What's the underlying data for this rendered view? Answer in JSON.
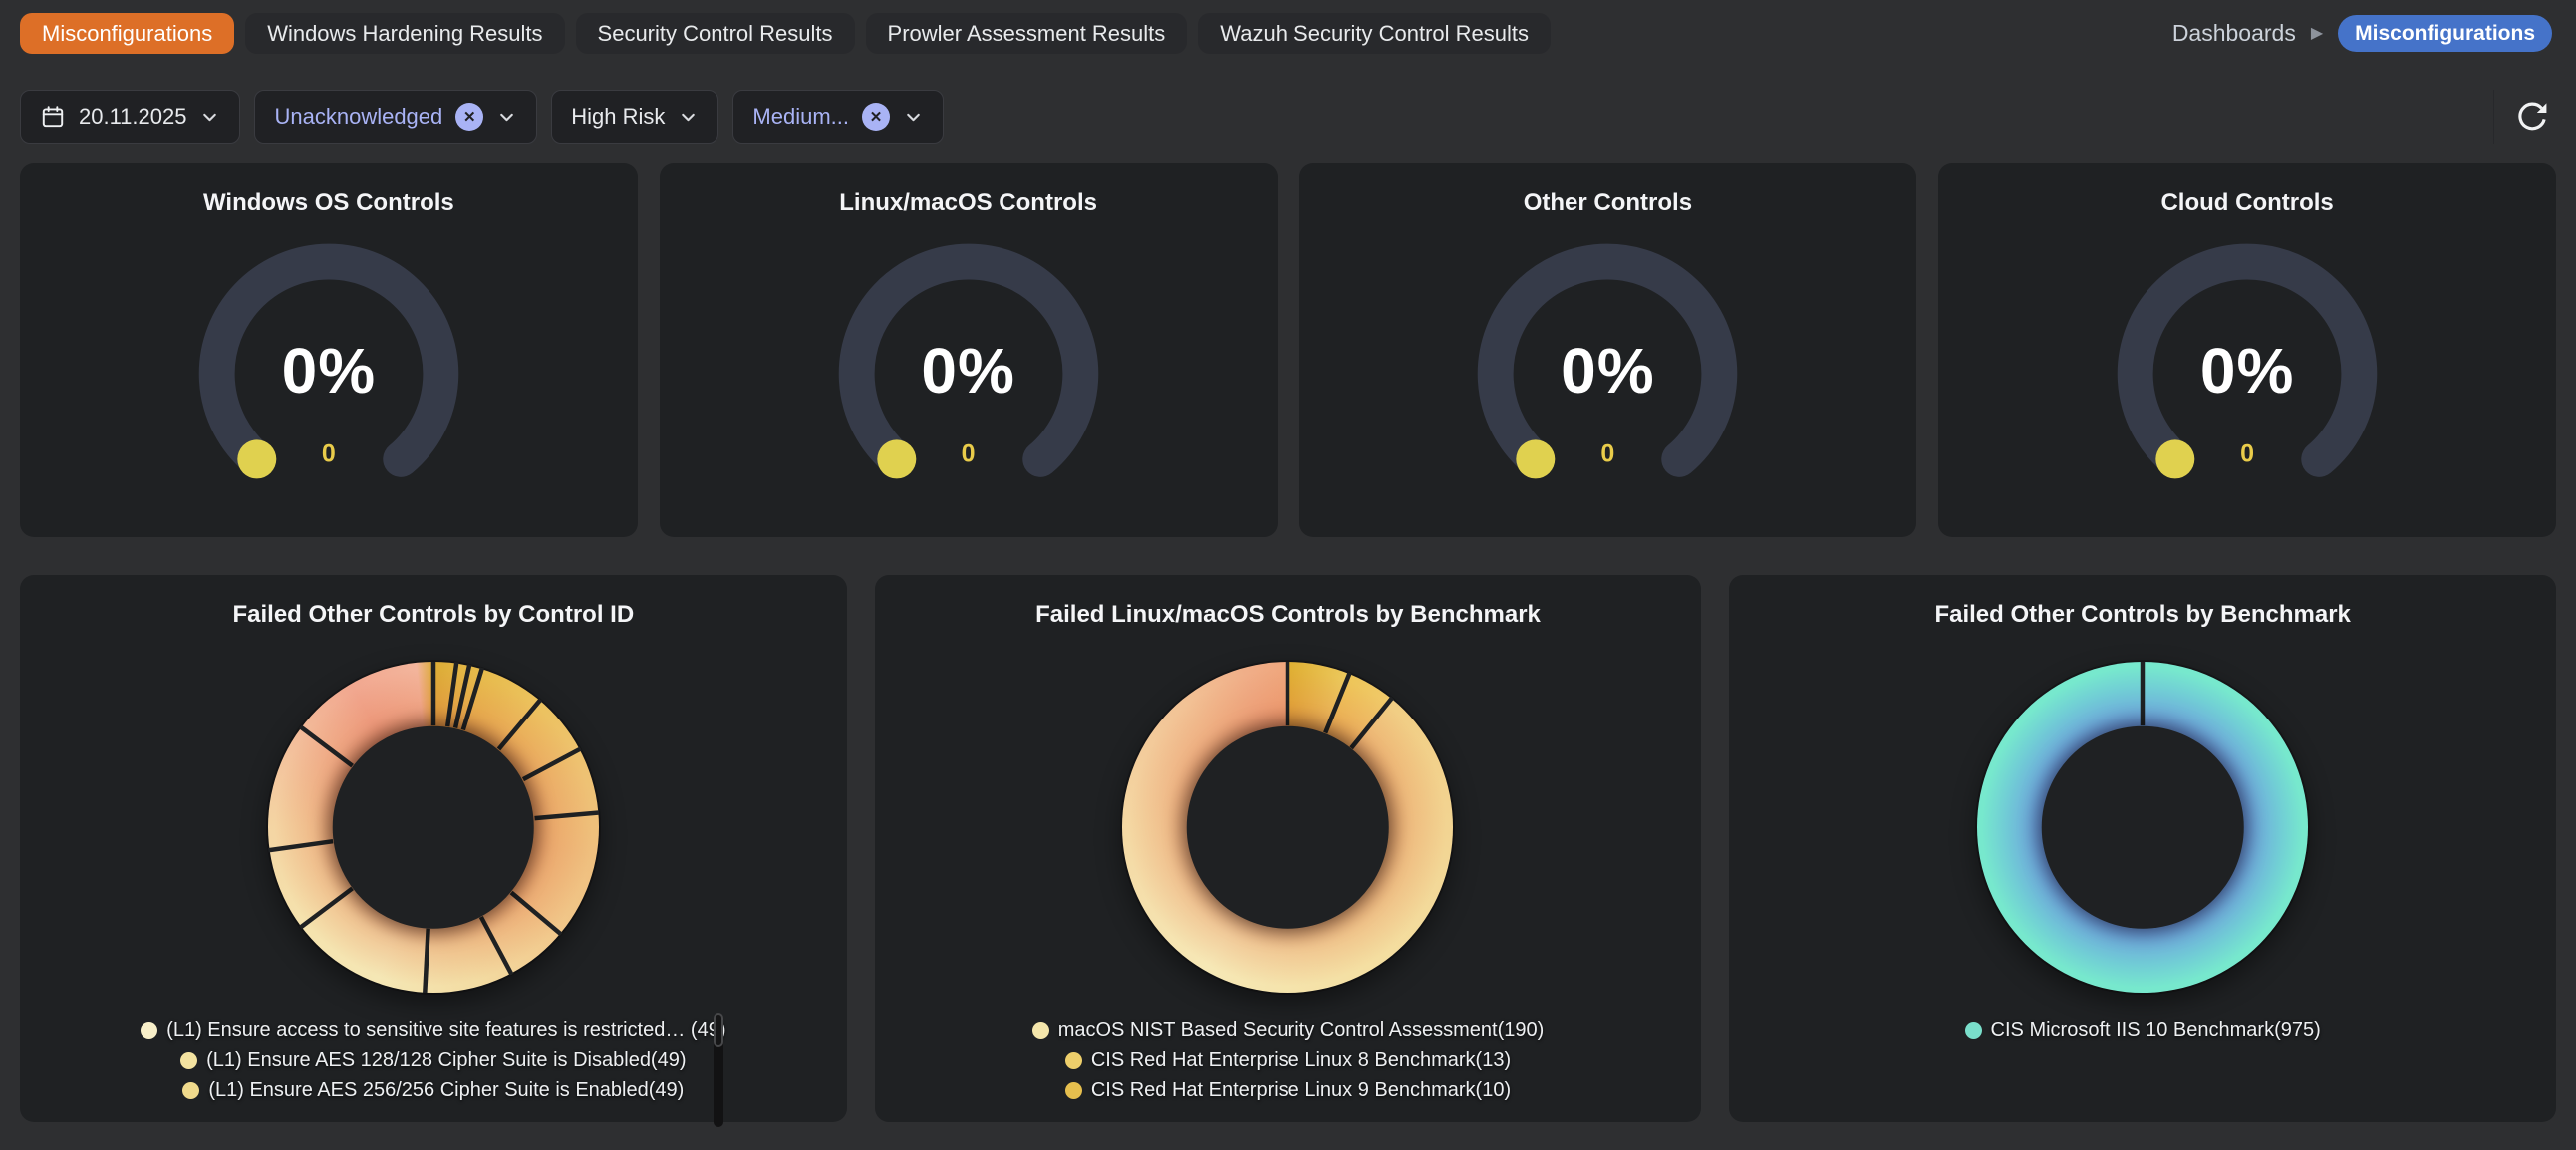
{
  "theme": {
    "page_bg": "#2e2f31",
    "card_bg": "#1f2123",
    "tab_bg": "#28292c",
    "tab_active_bg": "#dd6f27",
    "breadcrumb_badge_bg": "#4573c9",
    "filter_selected_text": "#a9b3f5",
    "gauge_track": "#363b49",
    "gauge_marker": "#e0d14f",
    "gauge_count_color": "#e9cc4a",
    "separator_color": "#1f2123"
  },
  "tabs": [
    {
      "label": "Misconfigurations",
      "active": true
    },
    {
      "label": "Windows Hardening Results",
      "active": false
    },
    {
      "label": "Security Control Results",
      "active": false
    },
    {
      "label": "Prowler Assessment Results",
      "active": false
    },
    {
      "label": "Wazuh Security Control Results",
      "active": false
    }
  ],
  "breadcrumb": {
    "root": "Dashboards",
    "current": "Misconfigurations"
  },
  "filters": {
    "date": "20.11.2025",
    "chips": [
      {
        "label": "Unacknowledged",
        "selected": true,
        "clearable": true
      },
      {
        "label": "High Risk",
        "selected": false,
        "clearable": false
      },
      {
        "label": "Medium...",
        "selected": true,
        "clearable": true
      }
    ]
  },
  "charts": {
    "gauges": [
      {
        "title": "Windows OS Controls",
        "percent": "0%",
        "count": "0"
      },
      {
        "title": "Linux/macOS Controls",
        "percent": "0%",
        "count": "0"
      },
      {
        "title": "Other Controls",
        "percent": "0%",
        "count": "0"
      },
      {
        "title": "Cloud Controls",
        "percent": "0%",
        "count": "0"
      }
    ],
    "donuts": [
      {
        "title": "Failed Other Controls by Control ID",
        "legend": [
          {
            "label": "(L1) Ensure access to sensitive site features is restricted… (49)",
            "color": "#f8efc9"
          },
          {
            "label": "(L1) Ensure AES 128/128 Cipher Suite is Disabled(49)",
            "color": "#f4e3a0"
          },
          {
            "label": "(L1) Ensure AES 256/256 Cipher Suite is Enabled(49)",
            "color": "#f0da8c"
          }
        ],
        "scrollbar": true,
        "separators_deg": [
          0,
          8,
          12.5,
          17,
          40,
          62,
          85,
          130,
          152,
          183,
          233,
          262,
          307
        ],
        "ring": {
          "conic": [
            [
              0,
              "#dcab35"
            ],
            [
              15,
              "#e6ba4a"
            ],
            [
              40,
              "#ecc25e"
            ],
            [
              70,
              "#eec273"
            ],
            [
              100,
              "#efbf7e"
            ],
            [
              130,
              "#f1c78a"
            ],
            [
              165,
              "#f3dca3"
            ],
            [
              200,
              "#f5e7b5"
            ],
            [
              235,
              "#f5e2ad"
            ],
            [
              270,
              "#f4d5a3"
            ],
            [
              300,
              "#f3bf9b"
            ],
            [
              330,
              "#f1a78f"
            ],
            [
              354,
              "#f3b59c"
            ],
            [
              360,
              "#dcab35"
            ]
          ],
          "glow": [
            [
              "0%",
              "rgba(228,118,73,0.55)"
            ],
            [
              "61%",
              "rgba(228,118,73,0.55)"
            ],
            [
              "72%",
              "rgba(228,118,73,0.30)"
            ],
            [
              "96%",
              "rgba(228,118,73,0)"
            ]
          ]
        }
      },
      {
        "title": "Failed Linux/macOS Controls by Benchmark",
        "legend": [
          {
            "label": "macOS NIST Based Security Control Assessment(190)",
            "color": "#f4e6ab"
          },
          {
            "label": "CIS Red Hat Enterprise Linux 8 Benchmark(13)",
            "color": "#eecf6b"
          },
          {
            "label": "CIS Red Hat Enterprise Linux 9 Benchmark(10)",
            "color": "#e6bf4e"
          }
        ],
        "scrollbar": false,
        "separators_deg": [
          0,
          22,
          39
        ],
        "ring": {
          "conic": [
            [
              0,
              "#dfae31"
            ],
            [
              22,
              "#ecc95e"
            ],
            [
              22,
              "#eec558"
            ],
            [
              39,
              "#f0c96a"
            ],
            [
              39,
              "#f1cd83"
            ],
            [
              90,
              "#f2d492"
            ],
            [
              150,
              "#f4dfa2"
            ],
            [
              210,
              "#f6e8b6"
            ],
            [
              270,
              "#f4d8a3"
            ],
            [
              320,
              "#f2c295"
            ],
            [
              345,
              "#f0ae88"
            ],
            [
              360,
              "#efa67c"
            ]
          ],
          "glow": [
            [
              "0%",
              "rgba(228,118,73,0.5)"
            ],
            [
              "61%",
              "rgba(228,118,73,0.5)"
            ],
            [
              "74%",
              "rgba(228,118,73,0.26)"
            ],
            [
              "96%",
              "rgba(228,118,73,0)"
            ]
          ]
        }
      },
      {
        "title": "Failed Other Controls by Benchmark",
        "legend": [
          {
            "label": "CIS Microsoft IIS 10 Benchmark(975)",
            "color": "#7adfcb"
          }
        ],
        "scrollbar": false,
        "separators_deg": [
          0
        ],
        "ring": {
          "radial": [
            [
              "0%",
              "#6d9ce2"
            ],
            [
              "62%",
              "#6d9ce2"
            ],
            [
              "72%",
              "#6fb3da"
            ],
            [
              "84%",
              "#71ced5"
            ],
            [
              "97%",
              "#77e8cd"
            ],
            [
              "100%",
              "#77e8cd"
            ]
          ]
        }
      }
    ]
  },
  "chart_data": [
    {
      "type": "gauge",
      "title": "Windows OS Controls",
      "value_pct": 0,
      "count": 0
    },
    {
      "type": "gauge",
      "title": "Linux/macOS Controls",
      "value_pct": 0,
      "count": 0
    },
    {
      "type": "gauge",
      "title": "Other Controls",
      "value_pct": 0,
      "count": 0
    },
    {
      "type": "gauge",
      "title": "Cloud Controls",
      "value_pct": 0,
      "count": 0
    },
    {
      "type": "pie",
      "subtype": "donut",
      "title": "Failed Other Controls by Control ID",
      "legend_position": "bottom",
      "visible_legend_slices": [
        {
          "label": "(L1) Ensure access to sensitive site features is restricted…",
          "value": 49
        },
        {
          "label": "(L1) Ensure AES 128/128 Cipher Suite is Disabled",
          "value": 49
        },
        {
          "label": "(L1) Ensure AES 256/256 Cipher Suite is Enabled",
          "value": 49
        }
      ],
      "approx_rendered_segment_count": 13,
      "palette": "warm yellow-to-salmon gradient"
    },
    {
      "type": "pie",
      "subtype": "donut",
      "title": "Failed Linux/macOS Controls by Benchmark",
      "legend_position": "bottom",
      "slices": [
        {
          "label": "macOS NIST Based Security Control Assessment",
          "value": 190
        },
        {
          "label": "CIS Red Hat Enterprise Linux 8 Benchmark",
          "value": 13
        },
        {
          "label": "CIS Red Hat Enterprise Linux 9 Benchmark",
          "value": 10
        }
      ],
      "palette": "warm yellow-to-salmon gradient"
    },
    {
      "type": "pie",
      "subtype": "donut",
      "title": "Failed Other Controls by Benchmark",
      "legend_position": "bottom",
      "slices": [
        {
          "label": "CIS Microsoft IIS 10 Benchmark",
          "value": 975
        }
      ],
      "palette": "blue-to-teal gradient"
    }
  ]
}
